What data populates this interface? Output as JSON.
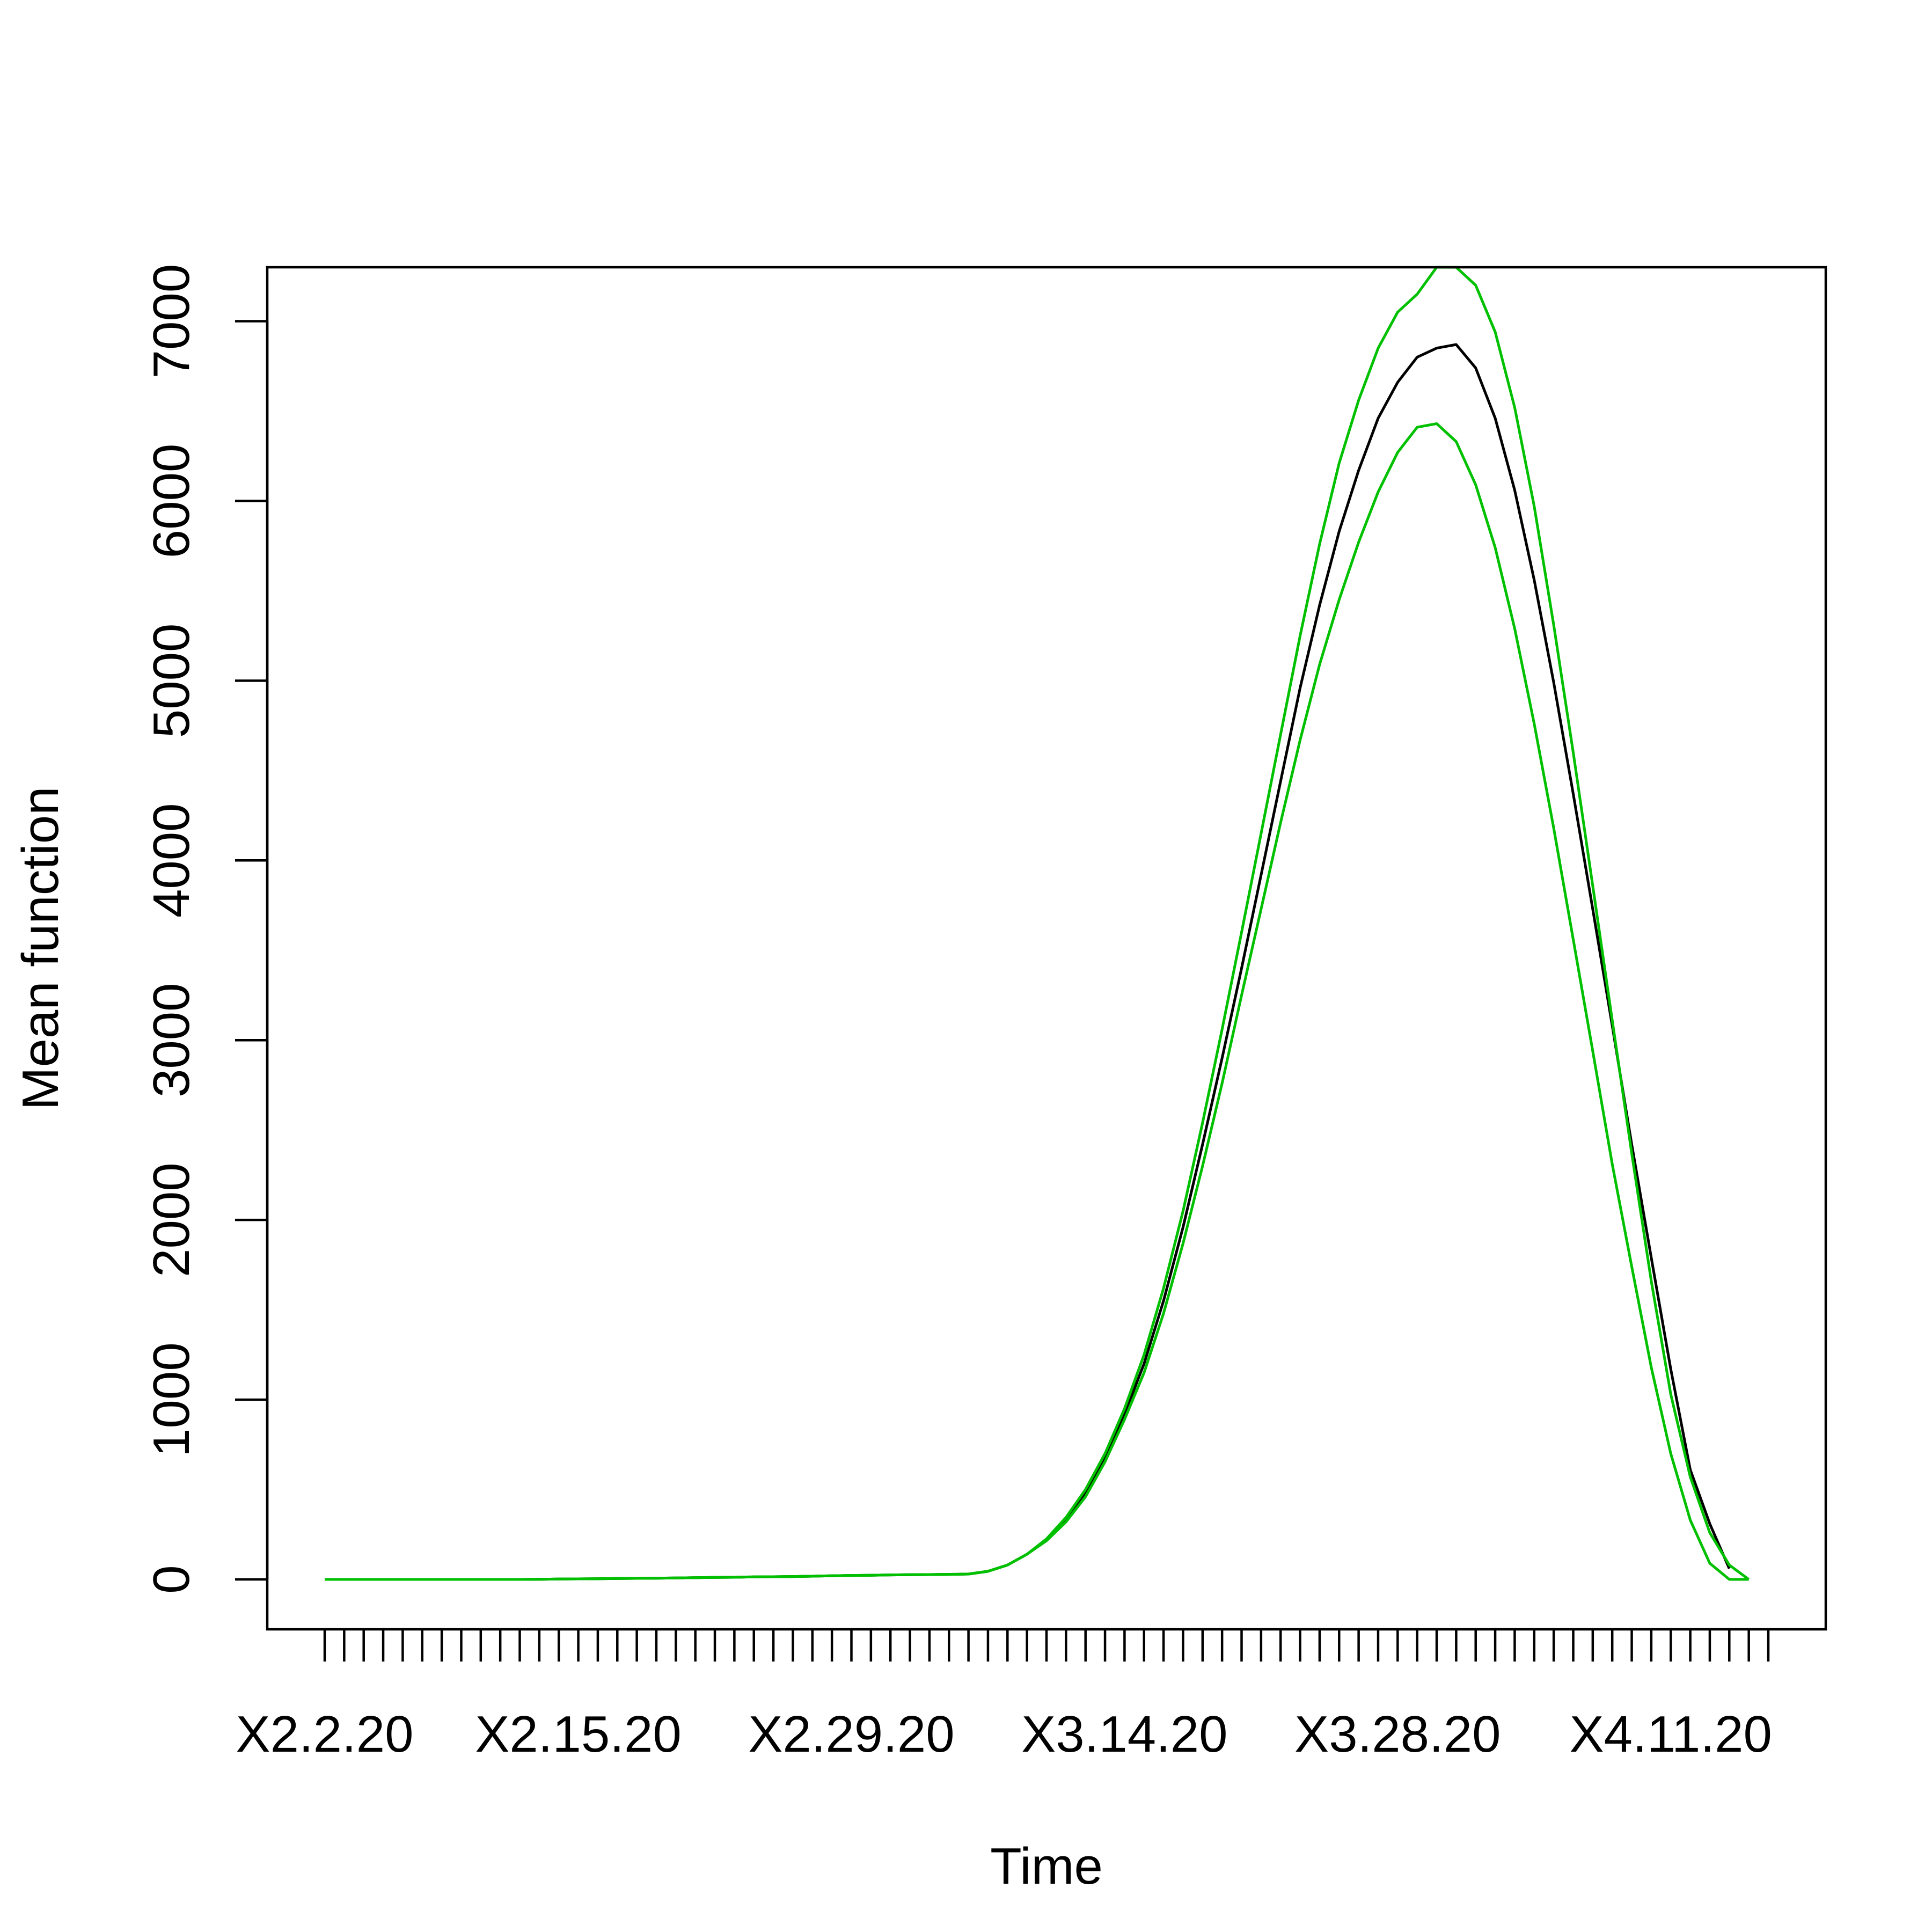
{
  "chart_data": {
    "type": "line",
    "title": "",
    "xlabel": "Time",
    "ylabel": "Mean function",
    "x_tick_labels": [
      "X2.2.20",
      "X2.15.20",
      "X2.29.20",
      "X3.14.20",
      "X3.28.20",
      "X4.11.20"
    ],
    "x_tick_label_index": [
      1,
      14,
      28,
      42,
      56,
      70
    ],
    "x_tick_count": 75,
    "y_ticks": [
      0,
      1000,
      2000,
      3000,
      4000,
      5000,
      6000,
      7000
    ],
    "y_tick_labels": [
      "0",
      "1000",
      "2000",
      "3000",
      "4000",
      "5000",
      "6000",
      "7000"
    ],
    "xlim": [
      1,
      75
    ],
    "ylim": [
      0,
      7300
    ],
    "legend": "none",
    "grid": false,
    "series": [
      {
        "color": "#000000",
        "x": [
          1,
          2,
          3,
          4,
          5,
          6,
          7,
          8,
          9,
          10,
          11,
          12,
          13,
          14,
          15,
          16,
          17,
          18,
          19,
          20,
          21,
          22,
          23,
          24,
          25,
          26,
          27,
          28,
          29,
          30,
          31,
          32,
          33,
          34,
          35,
          36,
          37,
          38,
          39,
          40,
          41,
          42,
          43,
          44,
          45,
          46,
          47,
          48,
          49,
          50,
          51,
          52,
          53,
          54,
          55,
          56,
          57,
          58,
          59,
          60,
          60,
          61,
          62,
          63,
          64,
          65,
          66,
          67,
          68,
          69,
          70,
          71,
          72,
          73
        ],
        "values": [
          0,
          0,
          0,
          0,
          0,
          0,
          0,
          0,
          0,
          0,
          0,
          1,
          2,
          3,
          4,
          5,
          6,
          7,
          8,
          10,
          11,
          12,
          14,
          15,
          16,
          18,
          20,
          22,
          23,
          25,
          26,
          27,
          28,
          30,
          45,
          80,
          140,
          220,
          330,
          480,
          680,
          920,
          1200,
          1550,
          1960,
          2420,
          2900,
          3400,
          3920,
          4440,
          4960,
          5420,
          5830,
          6170,
          6460,
          6660,
          6800,
          6850,
          6870,
          6740,
          6740,
          6460,
          6060,
          5560,
          4990,
          4370,
          3730,
          3080,
          2420,
          1790,
          1170,
          610,
          310,
          60
        ]
      },
      {
        "color": "#00c000",
        "x": [
          1,
          2,
          3,
          4,
          5,
          6,
          7,
          8,
          9,
          10,
          11,
          12,
          13,
          14,
          15,
          16,
          17,
          18,
          19,
          20,
          21,
          22,
          23,
          24,
          25,
          26,
          27,
          28,
          29,
          30,
          31,
          32,
          33,
          34,
          35,
          36,
          37,
          38,
          39,
          40,
          41,
          42,
          43,
          44,
          45,
          46,
          47,
          48,
          49,
          50,
          51,
          52,
          53,
          54,
          55,
          56,
          57,
          58,
          59,
          60,
          61,
          62,
          63,
          64,
          65,
          66,
          67,
          68,
          69,
          70,
          71,
          72,
          73,
          74
        ],
        "values": [
          0,
          0,
          0,
          0,
          0,
          0,
          0,
          0,
          0,
          0,
          0,
          1,
          2,
          3,
          4,
          5,
          6,
          7,
          8,
          10,
          11,
          12,
          14,
          15,
          16,
          18,
          20,
          22,
          23,
          25,
          26,
          27,
          28,
          30,
          45,
          80,
          140,
          225,
          345,
          500,
          700,
          950,
          1250,
          1620,
          2050,
          2540,
          3060,
          3600,
          4150,
          4700,
          5250,
          5760,
          6210,
          6560,
          6850,
          7050,
          7150,
          7300,
          7300,
          7200,
          6940,
          6520,
          5970,
          5310,
          4600,
          3860,
          3110,
          2370,
          1660,
          1030,
          570,
          260,
          80,
          0
        ]
      },
      {
        "color": "#00c000",
        "x": [
          1,
          2,
          3,
          4,
          5,
          6,
          7,
          8,
          9,
          10,
          11,
          12,
          13,
          14,
          15,
          16,
          17,
          18,
          19,
          20,
          21,
          22,
          23,
          24,
          25,
          26,
          27,
          28,
          29,
          30,
          31,
          32,
          33,
          34,
          35,
          36,
          37,
          38,
          39,
          40,
          41,
          42,
          43,
          44,
          45,
          46,
          47,
          48,
          49,
          50,
          51,
          52,
          53,
          54,
          55,
          56,
          57,
          58,
          59,
          60,
          61,
          62,
          63,
          64,
          65,
          66,
          67,
          68,
          69,
          70,
          71,
          72,
          73,
          74
        ],
        "values": [
          0,
          0,
          0,
          0,
          0,
          0,
          0,
          0,
          0,
          0,
          0,
          1,
          2,
          3,
          4,
          5,
          6,
          7,
          8,
          10,
          11,
          12,
          14,
          15,
          16,
          18,
          20,
          22,
          23,
          25,
          26,
          27,
          28,
          30,
          45,
          80,
          140,
          215,
          320,
          460,
          655,
          890,
          1150,
          1480,
          1870,
          2300,
          2760,
          3250,
          3730,
          4210,
          4670,
          5090,
          5450,
          5770,
          6050,
          6270,
          6410,
          6430,
          6330,
          6090,
          5740,
          5290,
          4760,
          4180,
          3560,
          2940,
          2310,
          1740,
          1180,
          700,
          330,
          90,
          0,
          0
        ]
      }
    ]
  }
}
